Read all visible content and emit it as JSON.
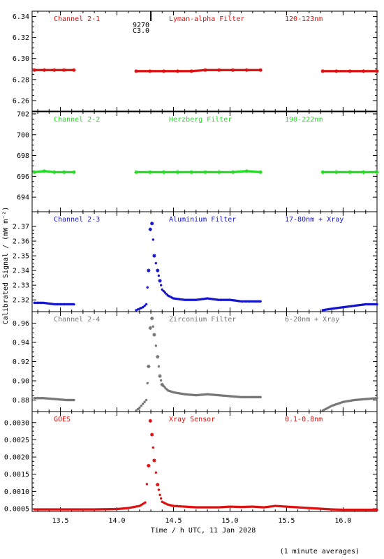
{
  "footer_note": "(1 minute averages)",
  "chart_data": {
    "type": "scatter",
    "xlabel": "Time / h UTC, 11 Jan 2028",
    "ylabel": "Calibrated Signal / (mW m⁻²)",
    "xlim": [
      13.25,
      16.3
    ],
    "x_ticks": [
      13.5,
      14.0,
      14.5,
      15.0,
      15.5,
      16.0
    ],
    "x_tick_labels": [
      "13.5",
      "14.0",
      "14.5",
      "15.0",
      "15.5",
      "16.0"
    ],
    "flare_annotation": {
      "x": 14.3,
      "label_number": "9270",
      "label_class": "C3.0"
    },
    "panels": [
      {
        "name": "Channel 2-1",
        "filter": "Lyman-alpha Filter",
        "band": "120-123nm",
        "color": "#dd1111",
        "ylim": [
          6.25,
          6.345
        ],
        "y_ticks": [
          6.26,
          6.28,
          6.3,
          6.32,
          6.34
        ],
        "y_tick_labels": [
          "6.26",
          "6.28",
          "6.30",
          "6.32",
          "6.34"
        ],
        "segments": [
          {
            "x_start": 13.27,
            "x_end": 13.62,
            "y": [
              6.289,
              6.289,
              6.289,
              6.289,
              6.289
            ]
          },
          {
            "x_start": 14.17,
            "x_end": 15.27,
            "y": [
              6.288,
              6.288,
              6.288,
              6.288,
              6.288,
              6.289,
              6.289,
              6.289,
              6.289,
              6.289
            ]
          },
          {
            "x_start": 15.82,
            "x_end": 16.3,
            "y": [
              6.288,
              6.288,
              6.288,
              6.288,
              6.288
            ]
          }
        ]
      },
      {
        "name": "Channel 2-2",
        "filter": "Herzberg Filter",
        "band": "190-222nm",
        "color": "#22dd22",
        "ylim": [
          692.6,
          702.2
        ],
        "y_ticks": [
          694,
          696,
          698,
          700,
          702
        ],
        "y_tick_labels": [
          "694",
          "696",
          "698",
          "700",
          "702"
        ],
        "segments": [
          {
            "x_start": 13.27,
            "x_end": 13.62,
            "y": [
              696.4,
              696.5,
              696.4,
              696.4,
              696.4
            ]
          },
          {
            "x_start": 14.17,
            "x_end": 15.27,
            "y": [
              696.4,
              696.4,
              696.4,
              696.4,
              696.4,
              696.4,
              696.4,
              696.4,
              696.5,
              696.4
            ]
          },
          {
            "x_start": 15.82,
            "x_end": 16.3,
            "y": [
              696.4,
              696.4,
              696.4,
              696.4,
              696.4
            ]
          }
        ]
      },
      {
        "name": "Channel 2-3",
        "filter": "Aluminium Filter",
        "band": "17-80nm + Xray",
        "color": "#1515cc",
        "ylim": [
          2.312,
          2.38
        ],
        "y_ticks": [
          2.32,
          2.33,
          2.34,
          2.35,
          2.36,
          2.37
        ],
        "y_tick_labels": [
          "2.32",
          "2.33",
          "2.34",
          "2.35",
          "2.36",
          "2.37"
        ],
        "segments": [
          {
            "x": [
              13.27,
              13.35,
              13.45,
              13.55,
              13.62
            ],
            "y": [
              2.318,
              2.318,
              2.317,
              2.317,
              2.317
            ]
          },
          {
            "x": [
              14.17,
              14.2,
              14.23,
              14.26,
              14.28,
              14.295,
              14.31,
              14.33,
              14.36,
              14.38,
              14.4,
              14.45,
              14.5,
              14.6,
              14.7,
              14.8,
              14.9,
              15.0,
              15.1,
              15.2,
              15.27
            ],
            "y": [
              2.313,
              2.314,
              2.315,
              2.317,
              2.34,
              2.368,
              2.372,
              2.35,
              2.34,
              2.333,
              2.327,
              2.323,
              2.321,
              2.32,
              2.32,
              2.321,
              2.32,
              2.32,
              2.319,
              2.319,
              2.319
            ]
          },
          {
            "x": [
              15.82,
              15.9,
              16.0,
              16.1,
              16.2,
              16.3
            ],
            "y": [
              2.313,
              2.314,
              2.315,
              2.316,
              2.317,
              2.317
            ]
          }
        ]
      },
      {
        "name": "Channel 2-4",
        "filter": "Zirconium Filter",
        "band": "6-20nm + Xray",
        "color": "#777777",
        "ylim": [
          0.868,
          0.972
        ],
        "y_ticks": [
          0.88,
          0.9,
          0.92,
          0.94,
          0.96
        ],
        "y_tick_labels": [
          "0.88",
          "0.90",
          "0.92",
          "0.94",
          "0.96"
        ],
        "segments": [
          {
            "x": [
              13.27,
              13.35,
              13.45,
              13.55,
              13.62
            ],
            "y": [
              0.882,
              0.882,
              0.881,
              0.88,
              0.88
            ]
          },
          {
            "x": [
              14.17,
              14.2,
              14.23,
              14.26,
              14.28,
              14.295,
              14.31,
              14.33,
              14.36,
              14.38,
              14.4,
              14.45,
              14.5,
              14.6,
              14.7,
              14.8,
              14.9,
              15.0,
              15.1,
              15.2,
              15.27
            ],
            "y": [
              0.869,
              0.872,
              0.876,
              0.88,
              0.915,
              0.955,
              0.965,
              0.948,
              0.925,
              0.905,
              0.896,
              0.89,
              0.888,
              0.886,
              0.885,
              0.886,
              0.885,
              0.884,
              0.883,
              0.883,
              0.883
            ]
          },
          {
            "x": [
              15.82,
              15.9,
              16.0,
              16.1,
              16.2,
              16.3
            ],
            "y": [
              0.869,
              0.874,
              0.878,
              0.88,
              0.881,
              0.882
            ]
          }
        ]
      },
      {
        "name": "GOES",
        "filter": "Xray Sensor",
        "band": "0.1-0.8nm",
        "color": "#dd1111",
        "ylim": [
          0.00042,
          0.00332
        ],
        "y_ticks": [
          0.0005,
          0.001,
          0.0015,
          0.002,
          0.0025,
          0.003
        ],
        "y_tick_labels": [
          "0.0005",
          "0.0010",
          "0.0015",
          "0.0020",
          "0.0025",
          "0.0030"
        ],
        "segments": [
          {
            "x": [
              13.27,
              13.5,
              13.8,
              14.0,
              14.1,
              14.2,
              14.25,
              14.28,
              14.295,
              14.31,
              14.33,
              14.36,
              14.38,
              14.4,
              14.45,
              14.5,
              14.7,
              14.9,
              15.0,
              15.1,
              15.2,
              15.3,
              15.4,
              15.5,
              15.6,
              15.7,
              15.8,
              15.9,
              16.0,
              16.1,
              16.2,
              16.3
            ],
            "y": [
              0.00048,
              0.00048,
              0.00048,
              0.00049,
              0.00052,
              0.00058,
              0.00068,
              0.00175,
              0.00305,
              0.00265,
              0.0019,
              0.0012,
              0.0009,
              0.0007,
              0.00062,
              0.00058,
              0.00054,
              0.00054,
              0.00056,
              0.00055,
              0.00056,
              0.00054,
              0.00058,
              0.00056,
              0.00054,
              0.00052,
              0.0005,
              0.00048,
              0.00047,
              0.00047,
              0.00047,
              0.00047
            ]
          }
        ]
      }
    ]
  }
}
